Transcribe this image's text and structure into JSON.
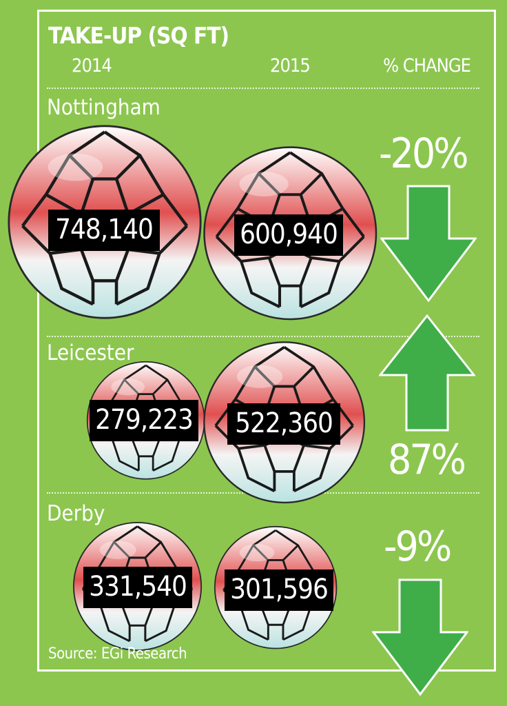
{
  "colors": {
    "background": "#8cc64f",
    "arrow_fill": "#3fae49",
    "label_bg": "#000000",
    "text": "#ffffff",
    "ball_red": "#e05050",
    "ball_teal": "#b9e3e1"
  },
  "chart_data": {
    "type": "table",
    "title": "TAKE-UP (SQ FT)",
    "columns": [
      "2014",
      "2015",
      "% CHANGE"
    ],
    "rows": [
      {
        "city": "Nottingham",
        "v2014": 748140,
        "v2015": 600940,
        "label_2014": "748,140",
        "label_2015": "600,940",
        "change": -20,
        "change_label": "-20%",
        "direction": "down"
      },
      {
        "city": "Leicester",
        "v2014": 279223,
        "v2015": 522360,
        "label_2014": "279,223",
        "label_2015": "522,360",
        "change": 87,
        "change_label": "87%",
        "direction": "up"
      },
      {
        "city": "Derby",
        "v2014": 331540,
        "v2015": 301596,
        "label_2014": "331,540",
        "label_2015": "301,596",
        "change": -9,
        "change_label": "-9%",
        "direction": "down"
      }
    ],
    "source": "Source: EGi Research"
  }
}
